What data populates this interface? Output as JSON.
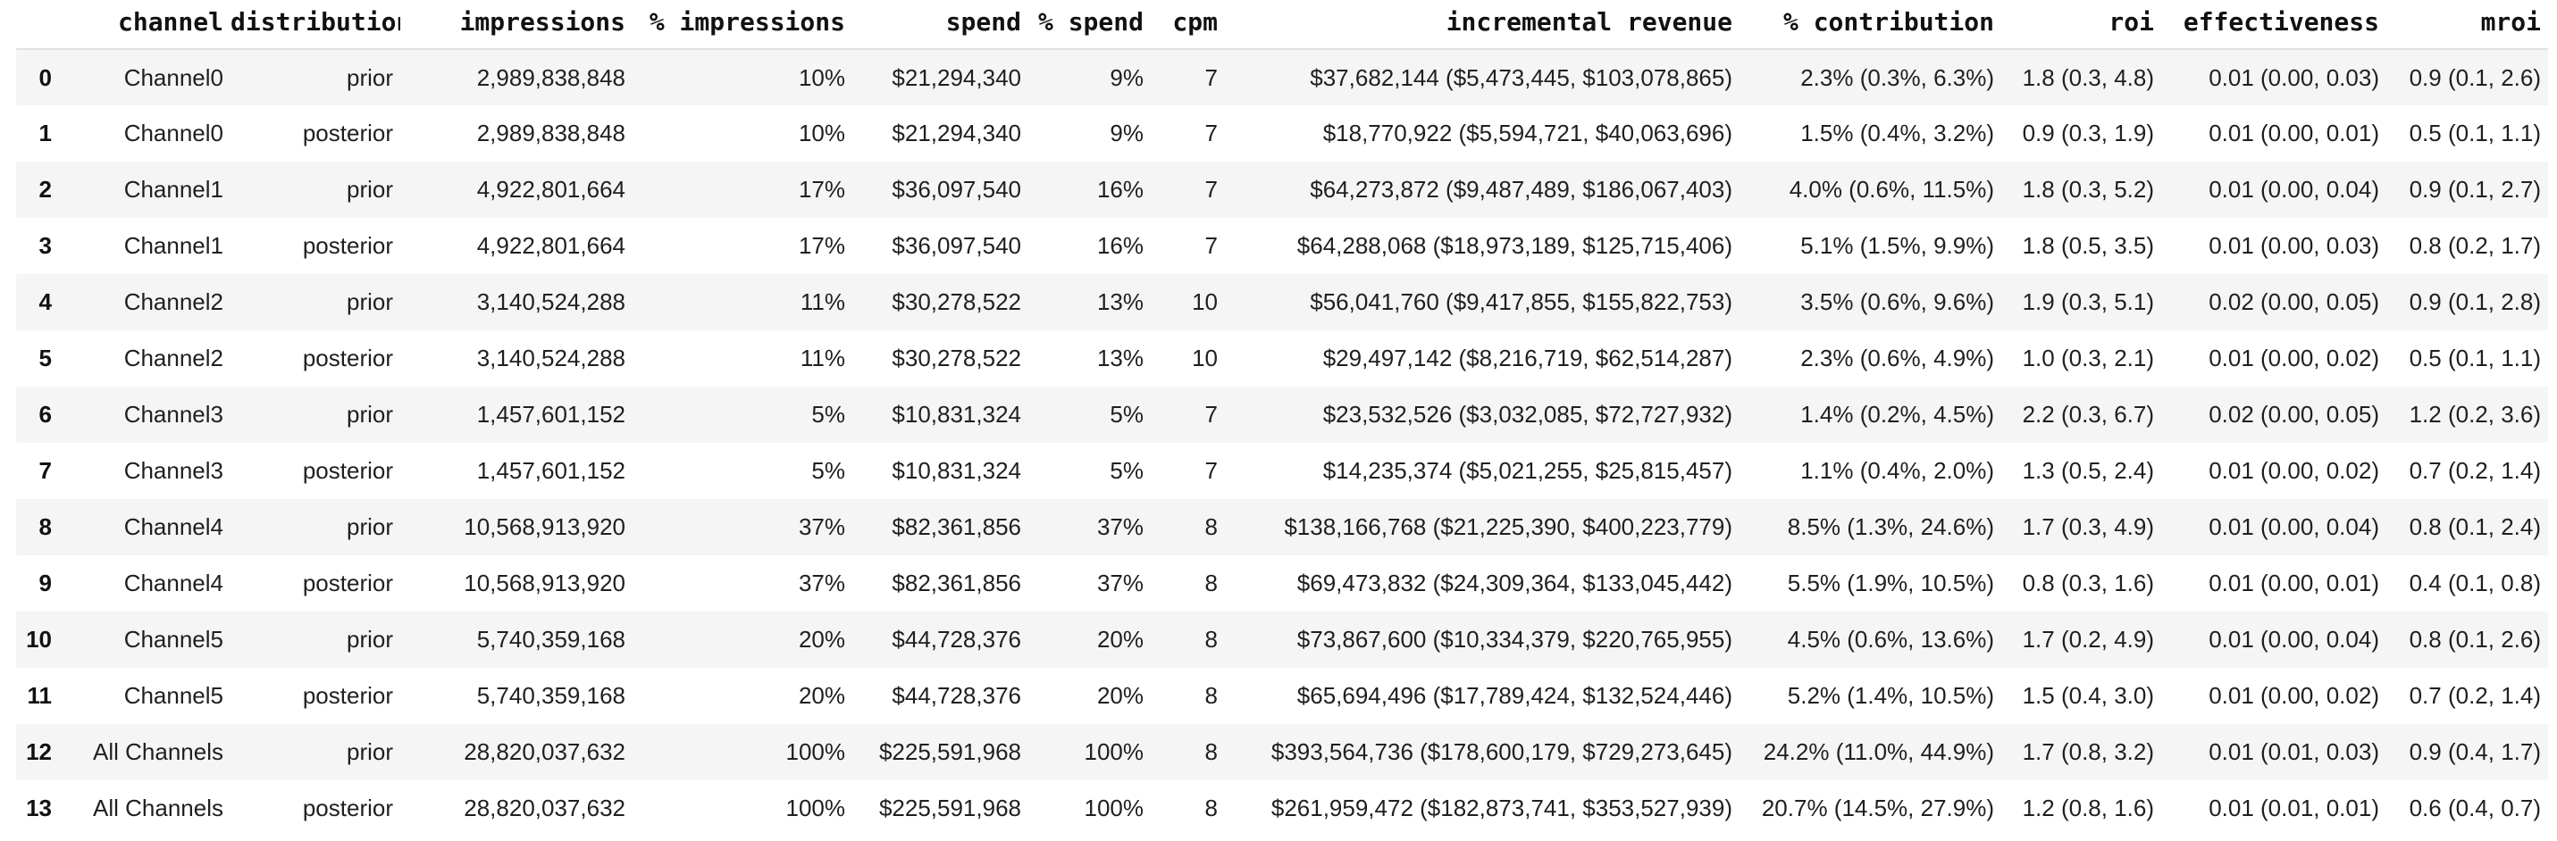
{
  "table": {
    "index_header": "",
    "columns": [
      "channel",
      "distribution",
      "impressions",
      "% impressions",
      "spend",
      "% spend",
      "cpm",
      "incremental revenue",
      "% contribution",
      "roi",
      "effectiveness",
      "mroi"
    ],
    "rows": [
      {
        "index": "0",
        "cells": [
          "Channel0",
          "prior",
          "2,989,838,848",
          "10%",
          "$21,294,340",
          "9%",
          "7",
          "$37,682,144 ($5,473,445, $103,078,865)",
          "2.3% (0.3%, 6.3%)",
          "1.8 (0.3, 4.8)",
          "0.01 (0.00, 0.03)",
          "0.9 (0.1, 2.6)"
        ]
      },
      {
        "index": "1",
        "cells": [
          "Channel0",
          "posterior",
          "2,989,838,848",
          "10%",
          "$21,294,340",
          "9%",
          "7",
          "$18,770,922 ($5,594,721, $40,063,696)",
          "1.5% (0.4%, 3.2%)",
          "0.9 (0.3, 1.9)",
          "0.01 (0.00, 0.01)",
          "0.5 (0.1, 1.1)"
        ]
      },
      {
        "index": "2",
        "cells": [
          "Channel1",
          "prior",
          "4,922,801,664",
          "17%",
          "$36,097,540",
          "16%",
          "7",
          "$64,273,872 ($9,487,489, $186,067,403)",
          "4.0% (0.6%, 11.5%)",
          "1.8 (0.3, 5.2)",
          "0.01 (0.00, 0.04)",
          "0.9 (0.1, 2.7)"
        ]
      },
      {
        "index": "3",
        "cells": [
          "Channel1",
          "posterior",
          "4,922,801,664",
          "17%",
          "$36,097,540",
          "16%",
          "7",
          "$64,288,068 ($18,973,189, $125,715,406)",
          "5.1% (1.5%, 9.9%)",
          "1.8 (0.5, 3.5)",
          "0.01 (0.00, 0.03)",
          "0.8 (0.2, 1.7)"
        ]
      },
      {
        "index": "4",
        "cells": [
          "Channel2",
          "prior",
          "3,140,524,288",
          "11%",
          "$30,278,522",
          "13%",
          "10",
          "$56,041,760 ($9,417,855, $155,822,753)",
          "3.5% (0.6%, 9.6%)",
          "1.9 (0.3, 5.1)",
          "0.02 (0.00, 0.05)",
          "0.9 (0.1, 2.8)"
        ]
      },
      {
        "index": "5",
        "cells": [
          "Channel2",
          "posterior",
          "3,140,524,288",
          "11%",
          "$30,278,522",
          "13%",
          "10",
          "$29,497,142 ($8,216,719, $62,514,287)",
          "2.3% (0.6%, 4.9%)",
          "1.0 (0.3, 2.1)",
          "0.01 (0.00, 0.02)",
          "0.5 (0.1, 1.1)"
        ]
      },
      {
        "index": "6",
        "cells": [
          "Channel3",
          "prior",
          "1,457,601,152",
          "5%",
          "$10,831,324",
          "5%",
          "7",
          "$23,532,526 ($3,032,085, $72,727,932)",
          "1.4% (0.2%, 4.5%)",
          "2.2 (0.3, 6.7)",
          "0.02 (0.00, 0.05)",
          "1.2 (0.2, 3.6)"
        ]
      },
      {
        "index": "7",
        "cells": [
          "Channel3",
          "posterior",
          "1,457,601,152",
          "5%",
          "$10,831,324",
          "5%",
          "7",
          "$14,235,374 ($5,021,255, $25,815,457)",
          "1.1% (0.4%, 2.0%)",
          "1.3 (0.5, 2.4)",
          "0.01 (0.00, 0.02)",
          "0.7 (0.2, 1.4)"
        ]
      },
      {
        "index": "8",
        "cells": [
          "Channel4",
          "prior",
          "10,568,913,920",
          "37%",
          "$82,361,856",
          "37%",
          "8",
          "$138,166,768 ($21,225,390, $400,223,779)",
          "8.5% (1.3%, 24.6%)",
          "1.7 (0.3, 4.9)",
          "0.01 (0.00, 0.04)",
          "0.8 (0.1, 2.4)"
        ]
      },
      {
        "index": "9",
        "cells": [
          "Channel4",
          "posterior",
          "10,568,913,920",
          "37%",
          "$82,361,856",
          "37%",
          "8",
          "$69,473,832 ($24,309,364, $133,045,442)",
          "5.5% (1.9%, 10.5%)",
          "0.8 (0.3, 1.6)",
          "0.01 (0.00, 0.01)",
          "0.4 (0.1, 0.8)"
        ]
      },
      {
        "index": "10",
        "cells": [
          "Channel5",
          "prior",
          "5,740,359,168",
          "20%",
          "$44,728,376",
          "20%",
          "8",
          "$73,867,600 ($10,334,379, $220,765,955)",
          "4.5% (0.6%, 13.6%)",
          "1.7 (0.2, 4.9)",
          "0.01 (0.00, 0.04)",
          "0.8 (0.1, 2.6)"
        ]
      },
      {
        "index": "11",
        "cells": [
          "Channel5",
          "posterior",
          "5,740,359,168",
          "20%",
          "$44,728,376",
          "20%",
          "8",
          "$65,694,496 ($17,789,424, $132,524,446)",
          "5.2% (1.4%, 10.5%)",
          "1.5 (0.4, 3.0)",
          "0.01 (0.00, 0.02)",
          "0.7 (0.2, 1.4)"
        ]
      },
      {
        "index": "12",
        "cells": [
          "All Channels",
          "prior",
          "28,820,037,632",
          "100%",
          "$225,591,968",
          "100%",
          "8",
          "$393,564,736 ($178,600,179, $729,273,645)",
          "24.2% (11.0%, 44.9%)",
          "1.7 (0.8, 3.2)",
          "0.01 (0.01, 0.03)",
          "0.9 (0.4, 1.7)"
        ]
      },
      {
        "index": "13",
        "cells": [
          "All Channels",
          "posterior",
          "28,820,037,632",
          "100%",
          "$225,591,968",
          "100%",
          "8",
          "$261,959,472 ($182,873,741, $353,527,939)",
          "20.7% (14.5%, 27.9%)",
          "1.2 (0.8, 1.6)",
          "0.01 (0.01, 0.01)",
          "0.6 (0.4, 0.7)"
        ]
      }
    ]
  },
  "colors": {
    "background": "#ffffff",
    "stripe": "#f5f5f5",
    "header_border": "#e1e1e1",
    "text": "#1f1f1f"
  }
}
